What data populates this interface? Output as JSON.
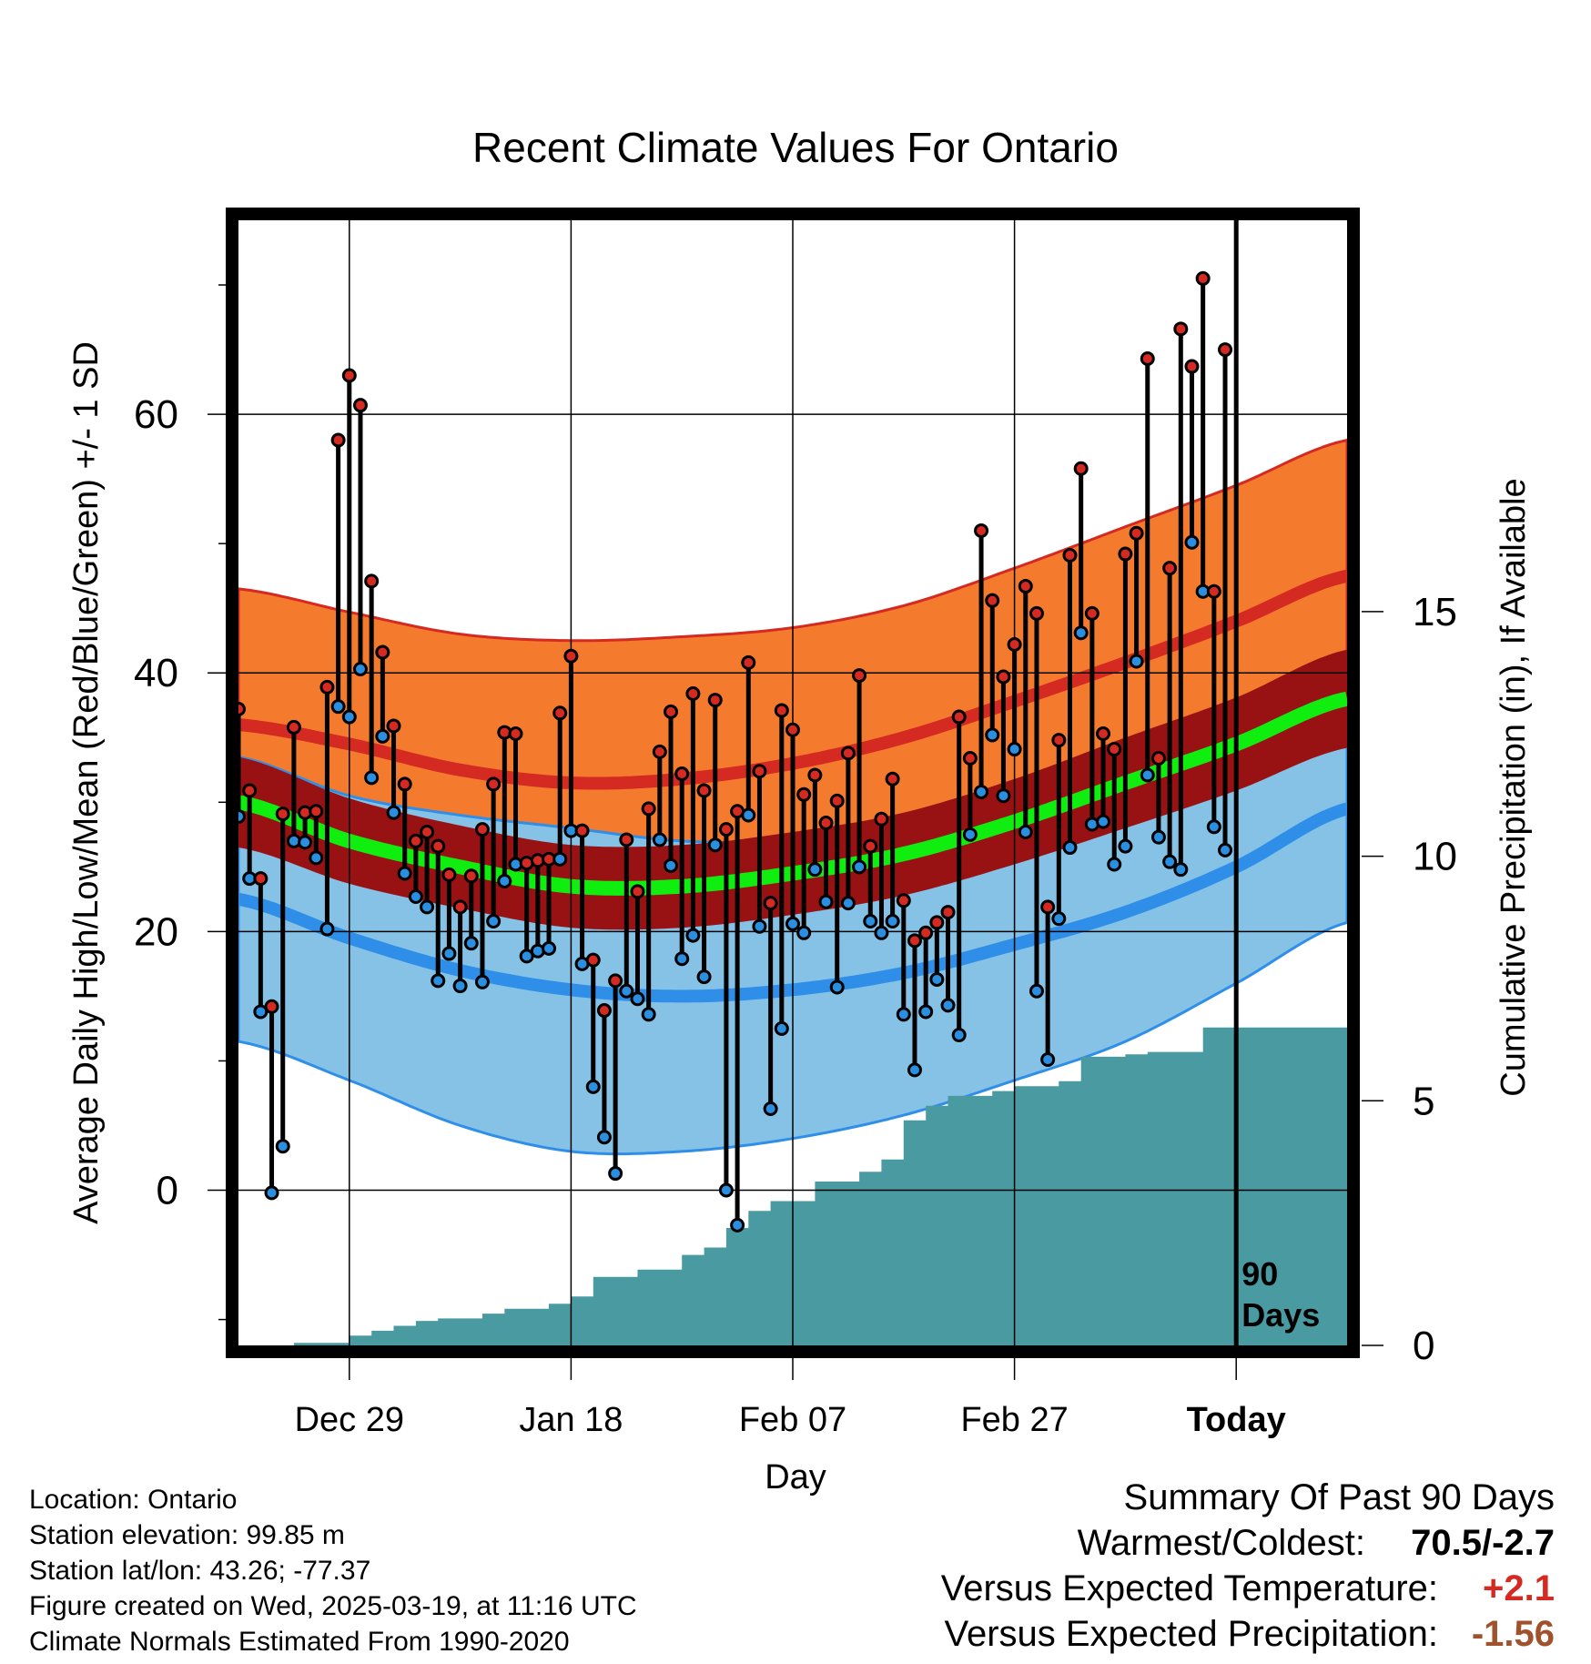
{
  "chart_data": {
    "type": "line",
    "title": "Recent Climate Values For Ontario",
    "xlabel": "Day",
    "ylabel": "Average Daily High/Low/Mean (Red/Blue/Green) +/- 1 SD",
    "y2label": "Cumulative Precipitation (in), If Available",
    "ylim": [
      -12,
      75
    ],
    "y2lim": [
      0,
      23
    ],
    "xlim": [
      -10,
      90
    ],
    "grid": true,
    "x_tick_labels": [
      "Dec 29",
      "Jan 18",
      "Feb 07",
      "Feb 27",
      "Today"
    ],
    "y_tick_labels": [
      "0",
      "20",
      "40",
      "60"
    ],
    "y2_tick_labels": [
      "0",
      "5",
      "10",
      "15"
    ],
    "marker_label": "90 Days",
    "colors": {
      "high_band": "#f47a2e",
      "high_line": "#d42a22",
      "low_band": "#86c2e6",
      "low_line": "#2f8fe8",
      "mean_band": "#981214",
      "mean_line": "#10ee10",
      "precip": "#4a9aa2",
      "high_dot": "#d42a22",
      "low_dot": "#2a8fe0"
    },
    "normals": {
      "x": [
        -10,
        0,
        10,
        20,
        30,
        40,
        50,
        60,
        70,
        80,
        90
      ],
      "high_mean": [
        36.0,
        34.5,
        32.5,
        31.5,
        31.8,
        33.0,
        35.0,
        37.8,
        40.8,
        44.0,
        47.5
      ],
      "high_sd": [
        10.5,
        10.2,
        10.5,
        11.0,
        11.0,
        10.5,
        10.2,
        10.3,
        10.5,
        10.5,
        10.5
      ],
      "low_mean": [
        22.5,
        19.5,
        17.0,
        15.5,
        15.0,
        15.5,
        16.8,
        19.0,
        21.5,
        25.0,
        29.5
      ],
      "low_sd": [
        11.0,
        11.0,
        12.0,
        12.5,
        12.0,
        11.5,
        11.0,
        10.5,
        10.0,
        9.0,
        8.8
      ],
      "mean_mean": [
        30.0,
        27.0,
        25.0,
        23.5,
        23.5,
        24.5,
        26.0,
        28.5,
        31.5,
        34.5,
        38.0
      ],
      "mean_sd": [
        3.5,
        3.3,
        3.2,
        3.2,
        3.2,
        3.2,
        3.2,
        3.3,
        3.5,
        3.6,
        3.8
      ]
    },
    "daily": [
      {
        "day": -10,
        "high": 37.2,
        "low": 28.9
      },
      {
        "day": -9,
        "high": 30.9,
        "low": 24.1
      },
      {
        "day": -8,
        "high": 24.1,
        "low": 13.8
      },
      {
        "day": -7,
        "high": 14.2,
        "low": -0.2
      },
      {
        "day": -6,
        "high": 29.1,
        "low": 3.4
      },
      {
        "day": -5,
        "high": 35.8,
        "low": 27.0
      },
      {
        "day": -4,
        "high": 29.2,
        "low": 26.9
      },
      {
        "day": -3,
        "high": 29.3,
        "low": 25.7
      },
      {
        "day": -2,
        "high": 38.9,
        "low": 20.2
      },
      {
        "day": -1,
        "high": 58.0,
        "low": 37.4
      },
      {
        "day": 0,
        "high": 63.0,
        "low": 36.6
      },
      {
        "day": 1,
        "high": 60.7,
        "low": 40.3
      },
      {
        "day": 2,
        "high": 47.1,
        "low": 31.9
      },
      {
        "day": 3,
        "high": 41.6,
        "low": 35.1
      },
      {
        "day": 4,
        "high": 35.9,
        "low": 29.2
      },
      {
        "day": 5,
        "high": 31.4,
        "low": 24.5
      },
      {
        "day": 6,
        "high": 27.0,
        "low": 22.7
      },
      {
        "day": 7,
        "high": 27.7,
        "low": 21.9
      },
      {
        "day": 8,
        "high": 26.6,
        "low": 16.2
      },
      {
        "day": 9,
        "high": 24.4,
        "low": 18.3
      },
      {
        "day": 10,
        "high": 21.9,
        "low": 15.8
      },
      {
        "day": 11,
        "high": 24.3,
        "low": 19.1
      },
      {
        "day": 12,
        "high": 27.9,
        "low": 16.1
      },
      {
        "day": 13,
        "high": 31.4,
        "low": 20.8
      },
      {
        "day": 14,
        "high": 35.4,
        "low": 23.9
      },
      {
        "day": 15,
        "high": 35.3,
        "low": 25.2
      },
      {
        "day": 16,
        "high": 25.3,
        "low": 18.1
      },
      {
        "day": 17,
        "high": 25.5,
        "low": 18.5
      },
      {
        "day": 18,
        "high": 25.6,
        "low": 18.7
      },
      {
        "day": 19,
        "high": 36.9,
        "low": 25.6
      },
      {
        "day": 20,
        "high": 41.3,
        "low": 27.8
      },
      {
        "day": 21,
        "high": 27.8,
        "low": 17.5
      },
      {
        "day": 22,
        "high": 17.8,
        "low": 8.0
      },
      {
        "day": 23,
        "high": 13.9,
        "low": 4.1
      },
      {
        "day": 24,
        "high": 16.2,
        "low": 1.3
      },
      {
        "day": 25,
        "high": 27.1,
        "low": 15.4
      },
      {
        "day": 26,
        "high": 23.1,
        "low": 14.8
      },
      {
        "day": 27,
        "high": 29.5,
        "low": 13.6
      },
      {
        "day": 28,
        "high": 33.9,
        "low": 27.1
      },
      {
        "day": 29,
        "high": 37.0,
        "low": 25.1
      },
      {
        "day": 30,
        "high": 32.2,
        "low": 17.9
      },
      {
        "day": 31,
        "high": 38.4,
        "low": 19.7
      },
      {
        "day": 32,
        "high": 30.9,
        "low": 16.5
      },
      {
        "day": 33,
        "high": 37.9,
        "low": 26.7
      },
      {
        "day": 34,
        "high": 27.9,
        "low": 0.0
      },
      {
        "day": 35,
        "high": 29.3,
        "low": -2.7
      },
      {
        "day": 36,
        "high": 40.8,
        "low": 29.0
      },
      {
        "day": 37,
        "high": 32.4,
        "low": 20.4
      },
      {
        "day": 38,
        "high": 22.2,
        "low": 6.3
      },
      {
        "day": 39,
        "high": 37.1,
        "low": 12.5
      },
      {
        "day": 40,
        "high": 35.6,
        "low": 20.6
      },
      {
        "day": 41,
        "high": 30.6,
        "low": 19.9
      },
      {
        "day": 42,
        "high": 32.1,
        "low": 24.8
      },
      {
        "day": 43,
        "high": 28.4,
        "low": 22.3
      },
      {
        "day": 44,
        "high": 30.1,
        "low": 15.7
      },
      {
        "day": 45,
        "high": 33.8,
        "low": 22.2
      },
      {
        "day": 46,
        "high": 39.8,
        "low": 25.0
      },
      {
        "day": 47,
        "high": 26.6,
        "low": 20.8
      },
      {
        "day": 48,
        "high": 28.7,
        "low": 19.9
      },
      {
        "day": 49,
        "high": 31.8,
        "low": 20.8
      },
      {
        "day": 50,
        "high": 22.4,
        "low": 13.6
      },
      {
        "day": 51,
        "high": 19.3,
        "low": 9.3
      },
      {
        "day": 52,
        "high": 19.9,
        "low": 13.8
      },
      {
        "day": 53,
        "high": 20.7,
        "low": 16.3
      },
      {
        "day": 54,
        "high": 21.5,
        "low": 14.3
      },
      {
        "day": 55,
        "high": 36.6,
        "low": 12.0
      },
      {
        "day": 56,
        "high": 33.4,
        "low": 27.5
      },
      {
        "day": 57,
        "high": 51.0,
        "low": 30.8
      },
      {
        "day": 58,
        "high": 45.6,
        "low": 35.2
      },
      {
        "day": 59,
        "high": 39.7,
        "low": 30.5
      },
      {
        "day": 60,
        "high": 42.2,
        "low": 34.1
      },
      {
        "day": 61,
        "high": 46.7,
        "low": 27.7
      },
      {
        "day": 62,
        "high": 44.6,
        "low": 15.4
      },
      {
        "day": 63,
        "high": 21.9,
        "low": 10.1
      },
      {
        "day": 64,
        "high": 34.8,
        "low": 21.0
      },
      {
        "day": 65,
        "high": 49.1,
        "low": 26.5
      },
      {
        "day": 66,
        "high": 55.8,
        "low": 43.1
      },
      {
        "day": 67,
        "high": 44.6,
        "low": 28.3
      },
      {
        "day": 68,
        "high": 35.3,
        "low": 28.5
      },
      {
        "day": 69,
        "high": 34.1,
        "low": 25.2
      },
      {
        "day": 70,
        "high": 49.2,
        "low": 26.6
      },
      {
        "day": 71,
        "high": 50.8,
        "low": 40.9
      },
      {
        "day": 72,
        "high": 64.3,
        "low": 32.1
      },
      {
        "day": 73,
        "high": 33.4,
        "low": 27.3
      },
      {
        "day": 74,
        "high": 48.1,
        "low": 25.4
      },
      {
        "day": 75,
        "high": 66.6,
        "low": 24.8
      },
      {
        "day": 76,
        "high": 63.7,
        "low": 50.1
      },
      {
        "day": 77,
        "high": 70.5,
        "low": 46.3
      },
      {
        "day": 78,
        "high": 46.3,
        "low": 28.1
      },
      {
        "day": 79,
        "high": 65.0,
        "low": 26.3
      }
    ],
    "precip_cumulative": {
      "day": [
        -10,
        -5,
        0,
        2,
        4,
        6,
        8,
        12,
        14,
        18,
        20,
        22,
        26,
        30,
        32,
        34,
        36,
        38,
        42,
        46,
        48,
        50,
        52,
        54,
        58,
        60,
        64,
        66,
        70,
        72,
        77,
        90
      ],
      "value": [
        0.0,
        0.05,
        0.2,
        0.3,
        0.4,
        0.5,
        0.55,
        0.65,
        0.75,
        0.85,
        1.0,
        1.4,
        1.55,
        1.85,
        2.0,
        2.4,
        2.75,
        2.95,
        3.35,
        3.55,
        3.8,
        4.6,
        4.9,
        5.1,
        5.2,
        5.3,
        5.4,
        5.9,
        5.95,
        6.0,
        6.5,
        6.5
      ]
    }
  },
  "info": {
    "location": "Location: Ontario",
    "elevation": "Station elevation: 99.85 m",
    "latlon": "Station lat/lon: 43.26; -77.37",
    "created": "Figure created on Wed, 2025-03-19, at 11:16 UTC",
    "normals": "Climate Normals Estimated From 1990-2020"
  },
  "summary": {
    "title": "Summary Of Past 90 Days",
    "warm_cold_label": "Warmest/Coldest:",
    "warm_cold_value": "70.5/-2.7",
    "temp_label": "Versus Expected Temperature:",
    "temp_value": "+2.1",
    "temp_color": "#d42a22",
    "precip_label": "Versus Expected Precipitation:",
    "precip_value": "-1.56",
    "precip_color": "#a0522d"
  }
}
